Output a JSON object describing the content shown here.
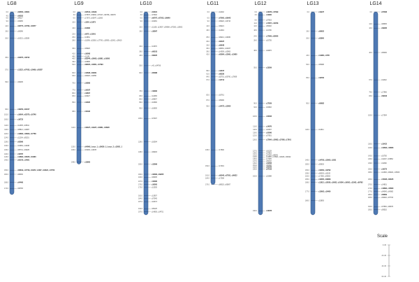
{
  "scale": {
    "title": "Scale",
    "max_cm": 60,
    "ticks": [
      {
        "cm": 0,
        "label": "0 cM"
      },
      {
        "cm": 20,
        "label": "20 cM"
      },
      {
        "cm": 40,
        "label": "40 cM"
      },
      {
        "cm": 60,
        "label": "60 cM"
      }
    ]
  },
  "linkage_groups": [
    {
      "name": "LG8",
      "length": 180,
      "markers": [
        {
          "pos": 0,
          "label": "c06656, c16601",
          "bold": true
        },
        {
          "pos": 4,
          "label": "c06552",
          "bold": true
        },
        {
          "pos": 6,
          "label": "c09117"
        },
        {
          "pos": 9,
          "label": "c09065"
        },
        {
          "pos": 14,
          "label": "c03775, c17782, c16577",
          "bold": true
        },
        {
          "pos": 19,
          "label": "c06096"
        },
        {
          "pos": 26,
          "label": "c10221, c15028"
        },
        {
          "pos": 45,
          "label": "c04075, c16742",
          "bold": true
        },
        {
          "pos": 57,
          "label": "c11222, c07433, c10669, c05287",
          "bold": true
        },
        {
          "pos": 69,
          "label": "c09405"
        },
        {
          "pos": 96,
          "label": "c16253, c02107",
          "bold": true
        },
        {
          "pos": 101,
          "label": "c16604, c02070, c16748",
          "bold": true
        },
        {
          "pos": 106,
          "label": "c16723",
          "bold": true
        },
        {
          "pos": 112,
          "label": "c14305, c03811"
        },
        {
          "pos": 116,
          "label": "c05813, c10987"
        },
        {
          "pos": 120,
          "label": "c14806, c16600, c17758",
          "bold": true
        },
        {
          "pos": 124,
          "label": "c11204, c05201"
        },
        {
          "pos": 128,
          "label": "c03096",
          "bold": true
        },
        {
          "pos": 132,
          "label": "c19669, c12938"
        },
        {
          "pos": 136,
          "label": "c05731, c09025"
        },
        {
          "pos": 140,
          "label": "c10787",
          "bold": true
        },
        {
          "pos": 143,
          "label": "c14862, c16025, c10300",
          "bold": true
        },
        {
          "pos": 146,
          "label": "c03145, c14601",
          "bold": true
        },
        {
          "pos": 156,
          "label": "c06819, c17729, c16272, c0407, c16022, c17762",
          "bold": true
        },
        {
          "pos": 160,
          "label": "c08030"
        },
        {
          "pos": 168,
          "label": "c04466",
          "bold": true
        },
        {
          "pos": 174,
          "label": "c09783"
        }
      ]
    },
    {
      "name": "LG9",
      "length": 150,
      "markers": [
        {
          "pos": 0,
          "label": "c03544, c11629",
          "bold": true
        },
        {
          "pos": 3,
          "label": "c07878, c09902, c07047, c09796, c09078"
        },
        {
          "pos": 6,
          "label": "c17073, c03547, c11003"
        },
        {
          "pos": 10,
          "label": "c1304, c11073",
          "bold": true
        },
        {
          "pos": 16,
          "label": "c01660",
          "bold": true
        },
        {
          "pos": 22,
          "label": "c0075, c13001",
          "bold": true
        },
        {
          "pos": 25,
          "label": "c13961"
        },
        {
          "pos": 28,
          "label": "c11096, c15018, c17706, c10950, c11001, c19610"
        },
        {
          "pos": 36,
          "label": "c05920"
        },
        {
          "pos": 41,
          "label": "c16008",
          "bold": true
        },
        {
          "pos": 44,
          "label": "c11101"
        },
        {
          "pos": 46,
          "label": "c03044, c16065, c16861, c16008",
          "bold": true
        },
        {
          "pos": 49,
          "label": "c03895"
        },
        {
          "pos": 52,
          "label": "c08025, c14851, c17093",
          "bold": true
        },
        {
          "pos": 60,
          "label": "c12638, c09061",
          "bold": true
        },
        {
          "pos": 63,
          "label": "c06026, c10050"
        },
        {
          "pos": 70,
          "label": "c10808",
          "bold": true
        },
        {
          "pos": 77,
          "label": "c10037",
          "bold": true
        },
        {
          "pos": 80,
          "label": "c13607",
          "bold": true
        },
        {
          "pos": 83,
          "label": "c03027"
        },
        {
          "pos": 89,
          "label": "c14020",
          "bold": true
        },
        {
          "pos": 98,
          "label": "c10432",
          "bold": true
        },
        {
          "pos": 114,
          "label": "c16327, c11927, c10861, c03020",
          "bold": true
        },
        {
          "pos": 133,
          "label": "c04066, Locus_1, c16629_1, Locus_2, c13051_1",
          "bold": true
        },
        {
          "pos": 136,
          "label": "c15036, c13978"
        },
        {
          "pos": 148,
          "label": "c13963",
          "bold": true
        }
      ]
    },
    {
      "name": "LG10",
      "length": 200,
      "markers": [
        {
          "pos": 0,
          "label": "c04021",
          "bold": true
        },
        {
          "pos": 3,
          "label": "c07902"
        },
        {
          "pos": 6,
          "label": "c06767, c07203, c09649",
          "bold": true
        },
        {
          "pos": 9,
          "label": "c16281"
        },
        {
          "pos": 15,
          "label": "c11100, c13907, c09068, c07282, c10502"
        },
        {
          "pos": 19,
          "label": "c18097",
          "bold": true
        },
        {
          "pos": 34,
          "label": "c13070"
        },
        {
          "pos": 39,
          "label": "c09103",
          "bold": true
        },
        {
          "pos": 43,
          "label": "c09025",
          "bold": true
        },
        {
          "pos": 53,
          "label": "c41, c04766"
        },
        {
          "pos": 60,
          "label": "c05088",
          "bold": true
        },
        {
          "pos": 78,
          "label": "c19090",
          "bold": true
        },
        {
          "pos": 83,
          "label": "c12065"
        },
        {
          "pos": 86,
          "label": "c05807"
        },
        {
          "pos": 89,
          "label": "c10690"
        },
        {
          "pos": 95,
          "label": "c16600"
        },
        {
          "pos": 105,
          "label": "c07007"
        },
        {
          "pos": 128,
          "label": "c16004"
        },
        {
          "pos": 138,
          "label": "c09003"
        },
        {
          "pos": 150,
          "label": "c13099",
          "bold": true
        },
        {
          "pos": 160,
          "label": "c16366, c09205",
          "bold": true
        },
        {
          "pos": 163,
          "label": "c09305"
        },
        {
          "pos": 167,
          "label": "c10095",
          "bold": true
        },
        {
          "pos": 170,
          "label": "c16005",
          "bold": true
        },
        {
          "pos": 173,
          "label": "c13205"
        },
        {
          "pos": 181,
          "label": "c13907"
        },
        {
          "pos": 184,
          "label": "c07045"
        },
        {
          "pos": 187,
          "label": "c16373"
        },
        {
          "pos": 194,
          "label": "c05125"
        },
        {
          "pos": 197,
          "label": "c14605, c14701"
        }
      ]
    },
    {
      "name": "LG11",
      "length": 170,
      "markers": [
        {
          "pos": 0,
          "label": "c11602"
        },
        {
          "pos": 6,
          "label": "c07905, c09643",
          "bold": true
        },
        {
          "pos": 9,
          "label": "c09022, c10716"
        },
        {
          "pos": 14,
          "label": "c09221"
        },
        {
          "pos": 18,
          "label": "c12019"
        },
        {
          "pos": 25,
          "label": "c09214, c10930"
        },
        {
          "pos": 29,
          "label": "c03437",
          "bold": true
        },
        {
          "pos": 33,
          "label": "c09648",
          "bold": true
        },
        {
          "pos": 36,
          "label": "c08061, c04037"
        },
        {
          "pos": 39,
          "label": "c14009, c10963"
        },
        {
          "pos": 42,
          "label": "c03084, c13091, c13605",
          "bold": true
        },
        {
          "pos": 58,
          "label": "c14047",
          "bold": true
        },
        {
          "pos": 61,
          "label": "c08336",
          "bold": true
        },
        {
          "pos": 64,
          "label": "c02701, c03760, c17809"
        },
        {
          "pos": 67,
          "label": "c14712",
          "bold": true
        },
        {
          "pos": 82,
          "label": "c03761"
        },
        {
          "pos": 87,
          "label": "c05096"
        },
        {
          "pos": 93,
          "label": "c14472, c13005",
          "bold": true
        },
        {
          "pos": 136,
          "label": "c17800"
        },
        {
          "pos": 152,
          "label": "c17001"
        },
        {
          "pos": 161,
          "label": "c06040, c07051, c06022",
          "bold": true
        },
        {
          "pos": 164,
          "label": "c17008"
        },
        {
          "pos": 170,
          "label": "c08023, c08067"
        }
      ]
    },
    {
      "name": "LG12",
      "length": 200,
      "markers": [
        {
          "pos": 0,
          "label": "c13078, c17099",
          "bold": true
        },
        {
          "pos": 3,
          "label": "c12900",
          "bold": true
        },
        {
          "pos": 8,
          "label": "c07933"
        },
        {
          "pos": 11,
          "label": "c17057, c13796",
          "bold": true
        },
        {
          "pos": 14,
          "label": "c05002"
        },
        {
          "pos": 18,
          "label": "c11706"
        },
        {
          "pos": 24,
          "label": "c17909, c09006",
          "bold": true
        },
        {
          "pos": 28,
          "label": "c10705"
        },
        {
          "pos": 38,
          "label": "c04976"
        },
        {
          "pos": 55,
          "label": "c13559",
          "bold": true
        },
        {
          "pos": 90,
          "label": "c17029",
          "bold": true
        },
        {
          "pos": 94,
          "label": "c16902"
        },
        {
          "pos": 103,
          "label": "c16463",
          "bold": true
        },
        {
          "pos": 113,
          "label": "c14676",
          "bold": true
        },
        {
          "pos": 116,
          "label": "c10037"
        },
        {
          "pos": 119,
          "label": "c10096",
          "bold": true
        },
        {
          "pos": 122,
          "label": "c07901"
        },
        {
          "pos": 126,
          "label": "c17064, c10083, c17008, c17001",
          "bold": true
        },
        {
          "pos": 137,
          "label": "c16128"
        },
        {
          "pos": 139,
          "label": "c07803"
        },
        {
          "pos": 141,
          "label": "c07029, c08041"
        },
        {
          "pos": 143,
          "label": "c14805, c17800, c10026, c09022"
        },
        {
          "pos": 145,
          "label": "c17905"
        },
        {
          "pos": 147,
          "label": "c09102"
        },
        {
          "pos": 149,
          "label": "c10058",
          "bold": true
        },
        {
          "pos": 151,
          "label": "c00008"
        },
        {
          "pos": 153,
          "label": "c05028",
          "bold": true
        },
        {
          "pos": 155,
          "label": "c07108",
          "bold": true
        },
        {
          "pos": 162,
          "label": "c15088"
        },
        {
          "pos": 196,
          "label": "c13078",
          "bold": true
        }
      ]
    },
    {
      "name": "LG13",
      "length": 200,
      "markers": [
        {
          "pos": 0,
          "label": "c13227",
          "bold": true
        },
        {
          "pos": 19,
          "label": "c09652",
          "bold": true
        },
        {
          "pos": 26,
          "label": "c03800",
          "bold": true
        },
        {
          "pos": 43,
          "label": "c11286, c1705",
          "bold": true
        },
        {
          "pos": 52,
          "label": "c05098"
        },
        {
          "pos": 65,
          "label": "c16784",
          "bold": true
        },
        {
          "pos": 90,
          "label": "c09682",
          "bold": true
        },
        {
          "pos": 116,
          "label": "c12911"
        },
        {
          "pos": 146,
          "label": "c14793, c12605, c1831",
          "bold": true
        },
        {
          "pos": 150,
          "label": "c05603"
        },
        {
          "pos": 156,
          "label": "c10052, c10790",
          "bold": true
        },
        {
          "pos": 159,
          "label": "c06003, c10105"
        },
        {
          "pos": 162,
          "label": "c17050, c09003"
        },
        {
          "pos": 165,
          "label": "c13005, c09808",
          "bold": true
        },
        {
          "pos": 168,
          "label": "c11012, c10030, c16002, c10084, c16002, c11062, c09792",
          "bold": true
        },
        {
          "pos": 177,
          "label": "c13662, c16406",
          "bold": true
        },
        {
          "pos": 186,
          "label": "c15893"
        }
      ]
    },
    {
      "name": "LG14",
      "length": 200,
      "markers": [
        {
          "pos": 0,
          "label": "c07008",
          "bold": true
        },
        {
          "pos": 12,
          "label": "c08605"
        },
        {
          "pos": 16,
          "label": "c09035",
          "bold": true
        },
        {
          "pos": 40,
          "label": "c05030"
        },
        {
          "pos": 67,
          "label": "c11642"
        },
        {
          "pos": 79,
          "label": "c17966"
        },
        {
          "pos": 83,
          "label": "c09043",
          "bold": true
        },
        {
          "pos": 102,
          "label": "c17054"
        },
        {
          "pos": 130,
          "label": "c15422",
          "bold": true
        },
        {
          "pos": 134,
          "label": "c12663, c13806",
          "bold": true
        },
        {
          "pos": 142,
          "label": "c10750"
        },
        {
          "pos": 145,
          "label": "c11007, c15852"
        },
        {
          "pos": 149,
          "label": "c11082"
        },
        {
          "pos": 155,
          "label": "c16273",
          "bold": true
        },
        {
          "pos": 158,
          "label": "c12600, c09022, c15303"
        },
        {
          "pos": 165,
          "label": "c15028, c09645",
          "bold": true
        },
        {
          "pos": 170,
          "label": "c14801"
        },
        {
          "pos": 174,
          "label": "c13896, c15860",
          "bold": true
        },
        {
          "pos": 177,
          "label": "c04045, c04082"
        },
        {
          "pos": 180,
          "label": "c06809",
          "bold": true
        },
        {
          "pos": 183,
          "label": "c09002, c07703"
        },
        {
          "pos": 192,
          "label": "c07952, c08076"
        },
        {
          "pos": 195,
          "label": "c09502"
        }
      ]
    }
  ]
}
